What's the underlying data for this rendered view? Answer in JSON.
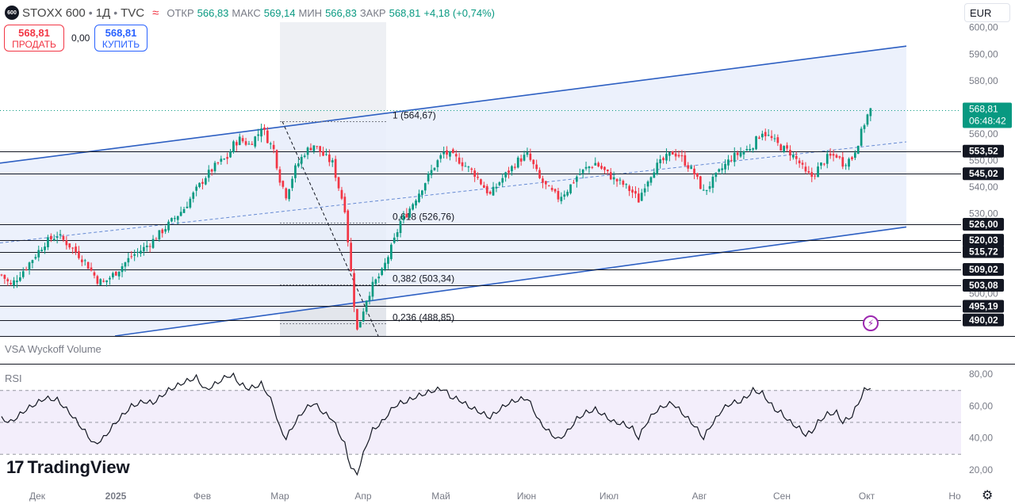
{
  "header": {
    "badge": "600",
    "symbol": "STOXX 600",
    "interval": "1Д",
    "source": "TVC",
    "ohlc": [
      {
        "k": "ОТКР",
        "v": "566,83"
      },
      {
        "k": "МАКС",
        "v": "569,14"
      },
      {
        "k": "МИН",
        "v": "566,83"
      },
      {
        "k": "ЗАКР",
        "v": "568,81"
      }
    ],
    "change": "+4,18 (+0,74%)"
  },
  "trade": {
    "sell_price": "568,81",
    "sell_label": "ПРОДАТЬ",
    "spread": "0,00",
    "buy_price": "568,81",
    "buy_label": "КУПИТЬ"
  },
  "currency": "EUR",
  "indicators": {
    "volume_label": "VSA Wyckoff Volume",
    "rsi_label": "RSI"
  },
  "brand": "TradingView",
  "colors": {
    "up": "#089981",
    "down": "#f23645",
    "channel": "#2d5fc2",
    "channel_fill": "#e9effc",
    "rsi_fill": "#f3eefb"
  },
  "chart_data": {
    "type": "candlestick",
    "price_axis": {
      "ticks": [
        "600,00",
        "590,00",
        "580,00",
        "570,00",
        "560,00",
        "550,00",
        "540,00",
        "530,00",
        "520,00",
        "510,00",
        "500,00"
      ],
      "range": [
        484,
        602
      ]
    },
    "time_axis": {
      "labels": [
        "Дек",
        "2025",
        "Фев",
        "Мар",
        "Апр",
        "Май",
        "Июн",
        "Июл",
        "Авг",
        "Сен",
        "Окт",
        "Но"
      ]
    },
    "last_price": {
      "value": 568.81,
      "label": "568,81",
      "countdown": "06:48:42"
    },
    "levels": [
      {
        "value": 553.52,
        "label": "553,52"
      },
      {
        "value": 545.02,
        "label": "545,02"
      },
      {
        "value": 526.0,
        "label": "526,00"
      },
      {
        "value": 520.03,
        "label": "520,03"
      },
      {
        "value": 515.72,
        "label": "515,72"
      },
      {
        "value": 509.02,
        "label": "509,02"
      },
      {
        "value": 503.08,
        "label": "503,08"
      },
      {
        "value": 495.19,
        "label": "495,19"
      },
      {
        "value": 490.02,
        "label": "490,02"
      }
    ],
    "fib_levels": [
      {
        "value": 564.67,
        "label": "1 (564,67)"
      },
      {
        "value": 526.76,
        "label": "0,618 (526,76)"
      },
      {
        "value": 503.34,
        "label": "0,382 (503,34)"
      },
      {
        "value": 488.85,
        "label": "0,236 (488,85)"
      }
    ],
    "channel": {
      "upper": [
        [
          "Ноя",
          549
        ],
        [
          "Окт",
          593
        ]
      ],
      "lower": [
        [
          "Дек",
          484
        ],
        [
          "Окт",
          525
        ]
      ],
      "mid": [
        [
          "Ноя",
          519
        ],
        [
          "Окт",
          557
        ]
      ]
    },
    "close_path": [
      [
        0,
        507
      ],
      [
        3,
        503
      ],
      [
        8,
        510
      ],
      [
        14,
        519
      ],
      [
        18,
        522
      ],
      [
        22,
        518
      ],
      [
        27,
        512
      ],
      [
        31,
        505
      ],
      [
        33,
        504
      ],
      [
        37,
        508
      ],
      [
        42,
        514
      ],
      [
        46,
        517
      ],
      [
        49,
        520
      ],
      [
        54,
        526
      ],
      [
        59,
        532
      ],
      [
        63,
        539
      ],
      [
        66,
        544
      ],
      [
        70,
        549
      ],
      [
        73,
        551
      ],
      [
        75,
        556
      ],
      [
        77,
        558
      ],
      [
        80,
        556
      ],
      [
        83,
        560
      ],
      [
        84,
        563
      ],
      [
        86,
        558
      ],
      [
        88,
        554
      ],
      [
        90,
        543
      ],
      [
        92,
        537
      ],
      [
        95,
        547
      ],
      [
        98,
        553
      ],
      [
        101,
        556
      ],
      [
        104,
        552
      ],
      [
        107,
        549
      ],
      [
        109,
        540
      ],
      [
        111,
        532
      ],
      [
        112,
        520
      ],
      [
        113,
        508
      ],
      [
        114,
        496
      ],
      [
        115,
        486
      ],
      [
        116,
        490
      ],
      [
        118,
        498
      ],
      [
        120,
        503
      ],
      [
        123,
        508
      ],
      [
        125,
        514
      ],
      [
        127,
        520
      ],
      [
        129,
        527
      ],
      [
        131,
        530
      ],
      [
        134,
        536
      ],
      [
        137,
        542
      ],
      [
        140,
        548
      ],
      [
        143,
        553
      ],
      [
        145,
        552
      ],
      [
        148,
        550
      ],
      [
        151,
        547
      ],
      [
        153,
        545
      ],
      [
        156,
        540
      ],
      [
        158,
        537
      ],
      [
        161,
        542
      ],
      [
        164,
        546
      ],
      [
        167,
        550
      ],
      [
        170,
        552
      ],
      [
        172,
        548
      ],
      [
        174,
        543
      ],
      [
        177,
        539
      ],
      [
        180,
        536
      ],
      [
        183,
        539
      ],
      [
        186,
        544
      ],
      [
        189,
        547
      ],
      [
        192,
        549
      ],
      [
        195,
        546
      ],
      [
        198,
        543
      ],
      [
        201,
        541
      ],
      [
        204,
        538
      ],
      [
        206,
        535
      ],
      [
        208,
        541
      ],
      [
        211,
        547
      ],
      [
        214,
        550
      ],
      [
        217,
        553
      ],
      [
        219,
        552
      ],
      [
        222,
        548
      ],
      [
        224,
        545
      ],
      [
        227,
        538
      ],
      [
        229,
        541
      ],
      [
        231,
        544
      ],
      [
        233,
        547
      ],
      [
        236,
        551
      ],
      [
        239,
        553
      ],
      [
        241,
        554
      ],
      [
        243,
        556
      ],
      [
        246,
        561
      ],
      [
        248,
        559
      ],
      [
        250,
        557
      ],
      [
        252,
        555
      ],
      [
        255,
        553
      ],
      [
        258,
        549
      ],
      [
        260,
        545
      ],
      [
        262,
        544
      ],
      [
        264,
        547
      ],
      [
        267,
        551
      ],
      [
        270,
        552
      ],
      [
        272,
        549
      ],
      [
        275,
        551
      ],
      [
        277,
        557
      ],
      [
        279,
        564
      ],
      [
        280,
        567
      ],
      [
        281,
        569
      ]
    ],
    "rsi": {
      "range": [
        14,
        86
      ],
      "ticks": [
        "80,00",
        "60,00",
        "40,00",
        "20,00"
      ],
      "bands": [
        70,
        50,
        30
      ],
      "path": [
        [
          0,
          52
        ],
        [
          3,
          50
        ],
        [
          8,
          58
        ],
        [
          14,
          65
        ],
        [
          18,
          64
        ],
        [
          22,
          56
        ],
        [
          27,
          44
        ],
        [
          30,
          36
        ],
        [
          33,
          40
        ],
        [
          37,
          50
        ],
        [
          42,
          60
        ],
        [
          46,
          63
        ],
        [
          49,
          62
        ],
        [
          54,
          70
        ],
        [
          59,
          75
        ],
        [
          63,
          78
        ],
        [
          66,
          70
        ],
        [
          70,
          75
        ],
        [
          73,
          79
        ],
        [
          75,
          79
        ],
        [
          77,
          74
        ],
        [
          80,
          71
        ],
        [
          83,
          73
        ],
        [
          84,
          74
        ],
        [
          86,
          68
        ],
        [
          88,
          60
        ],
        [
          90,
          46
        ],
        [
          92,
          40
        ],
        [
          95,
          50
        ],
        [
          98,
          58
        ],
        [
          101,
          62
        ],
        [
          104,
          56
        ],
        [
          107,
          52
        ],
        [
          109,
          44
        ],
        [
          111,
          36
        ],
        [
          112,
          28
        ],
        [
          113,
          22
        ],
        [
          114,
          19
        ],
        [
          115,
          18
        ],
        [
          116,
          24
        ],
        [
          118,
          36
        ],
        [
          120,
          45
        ],
        [
          123,
          50
        ],
        [
          125,
          55
        ],
        [
          127,
          60
        ],
        [
          129,
          62
        ],
        [
          131,
          63
        ],
        [
          134,
          66
        ],
        [
          137,
          68
        ],
        [
          140,
          70
        ],
        [
          143,
          71
        ],
        [
          145,
          66
        ],
        [
          148,
          64
        ],
        [
          151,
          60
        ],
        [
          153,
          58
        ],
        [
          156,
          55
        ],
        [
          158,
          53
        ],
        [
          161,
          58
        ],
        [
          164,
          62
        ],
        [
          167,
          64
        ],
        [
          170,
          65
        ],
        [
          172,
          58
        ],
        [
          174,
          50
        ],
        [
          177,
          44
        ],
        [
          180,
          39
        ],
        [
          183,
          44
        ],
        [
          186,
          52
        ],
        [
          189,
          56
        ],
        [
          192,
          58
        ],
        [
          195,
          54
        ],
        [
          198,
          50
        ],
        [
          201,
          49
        ],
        [
          204,
          46
        ],
        [
          206,
          40
        ],
        [
          208,
          48
        ],
        [
          211,
          56
        ],
        [
          214,
          60
        ],
        [
          217,
          62
        ],
        [
          219,
          58
        ],
        [
          222,
          52
        ],
        [
          224,
          48
        ],
        [
          227,
          40
        ],
        [
          229,
          47
        ],
        [
          231,
          52
        ],
        [
          233,
          58
        ],
        [
          236,
          62
        ],
        [
          239,
          63
        ],
        [
          241,
          66
        ],
        [
          243,
          70
        ],
        [
          246,
          68
        ],
        [
          248,
          63
        ],
        [
          250,
          58
        ],
        [
          252,
          56
        ],
        [
          255,
          50
        ],
        [
          258,
          46
        ],
        [
          260,
          42
        ],
        [
          262,
          44
        ],
        [
          264,
          50
        ],
        [
          267,
          55
        ],
        [
          270,
          56
        ],
        [
          272,
          50
        ],
        [
          275,
          54
        ],
        [
          277,
          62
        ],
        [
          279,
          70
        ],
        [
          281,
          72
        ]
      ]
    }
  }
}
